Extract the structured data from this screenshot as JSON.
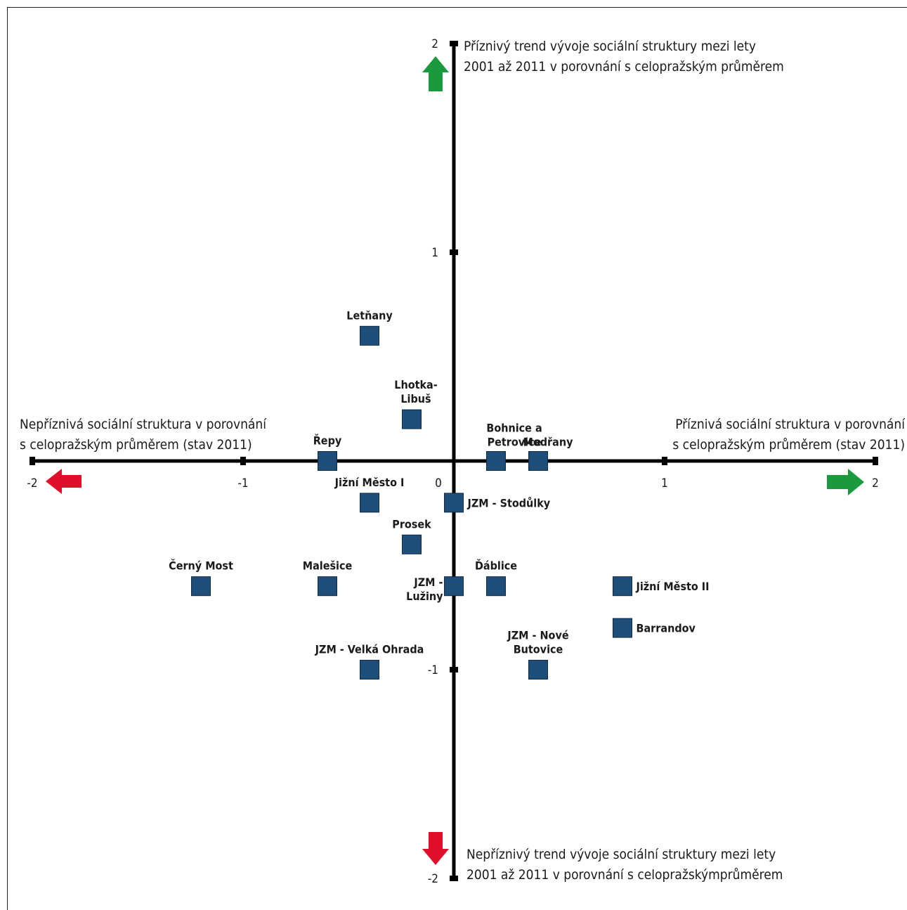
{
  "chart_data": {
    "type": "scatter",
    "xlim": [
      -2,
      2
    ],
    "ylim": [
      -2,
      2
    ],
    "x_ticks": [
      {
        "value": -2,
        "label": "-2"
      },
      {
        "value": -1,
        "label": "-1"
      },
      {
        "value": 0,
        "label": "0"
      },
      {
        "value": 1,
        "label": "1"
      },
      {
        "value": 2,
        "label": "2"
      }
    ],
    "y_ticks": [
      {
        "value": 2,
        "label": "2"
      },
      {
        "value": 1,
        "label": "1"
      },
      {
        "value": -1,
        "label": "-1"
      },
      {
        "value": -2,
        "label": "-2"
      }
    ],
    "marker_color": "#1f4e79",
    "points": [
      {
        "name": "Letňany",
        "x": -0.4,
        "y": 0.6,
        "anchor": "above"
      },
      {
        "name": "Lhotka-\nLibuš",
        "x": -0.2,
        "y": 0.2,
        "anchor": "above-center-right"
      },
      {
        "name": "Řepy",
        "x": -0.6,
        "y": 0.0,
        "anchor": "above"
      },
      {
        "name": "Bohnice a\nPetrovice",
        "x": 0.2,
        "y": 0.0,
        "anchor": "above-left"
      },
      {
        "name": "Modřany",
        "x": 0.4,
        "y": 0.0,
        "anchor": "above-right"
      },
      {
        "name": "Jižní Město I",
        "x": -0.4,
        "y": -0.2,
        "anchor": "above"
      },
      {
        "name": "JZM - Stodůlky",
        "x": 0.0,
        "y": -0.2,
        "anchor": "right"
      },
      {
        "name": "Prosek",
        "x": -0.2,
        "y": -0.4,
        "anchor": "above"
      },
      {
        "name": "Černý Most",
        "x": -1.2,
        "y": -0.6,
        "anchor": "above"
      },
      {
        "name": "Malešice",
        "x": -0.6,
        "y": -0.6,
        "anchor": "above"
      },
      {
        "name": "JZM -\nLužiny",
        "x": 0.0,
        "y": -0.6,
        "anchor": "left"
      },
      {
        "name": "Ďáblice",
        "x": 0.2,
        "y": -0.6,
        "anchor": "above"
      },
      {
        "name": "Jižní Město II",
        "x": 0.8,
        "y": -0.6,
        "anchor": "right"
      },
      {
        "name": "Barrandov",
        "x": 0.8,
        "y": -0.8,
        "anchor": "right"
      },
      {
        "name": "JZM - Velká Ohrada",
        "x": -0.4,
        "y": -1.0,
        "anchor": "above"
      },
      {
        "name": "JZM - Nové\nButovice",
        "x": 0.4,
        "y": -1.0,
        "anchor": "above"
      }
    ],
    "annotations": {
      "top": [
        "Příznivý trend vývoje sociální struktury mezi lety",
        "2001 až 2011 v porovnání s celopražským průměrem"
      ],
      "bottom": [
        "Nepříznivý trend vývoje sociální struktury mezi lety",
        "2001 až 2011 v porovnání s celopražskýmprůměrem"
      ],
      "left": [
        "Nepříznivá sociální struktura v porovnání",
        "s celopražským průměrem (stav 2011)"
      ],
      "right": [
        "Příznivá sociální struktura v porovnání",
        "s celopražským průměrem (stav 2011)"
      ]
    },
    "arrows": {
      "positive_color": "#1a9a3c",
      "negative_color": "#e0102a"
    },
    "grid": false,
    "legend": "none"
  }
}
